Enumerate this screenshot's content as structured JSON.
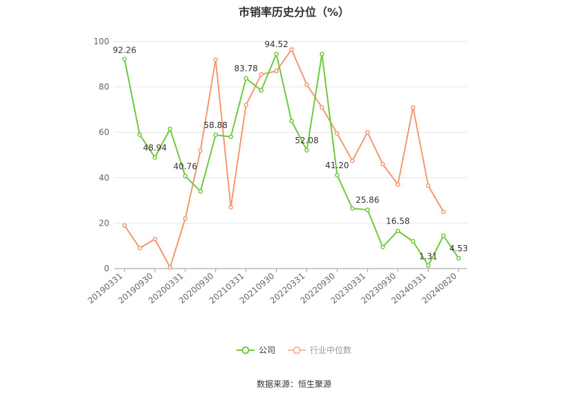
{
  "chart_data": {
    "type": "line",
    "title": "市销率历史分位（%）",
    "ylim": [
      0,
      100
    ],
    "yticks": [
      0,
      20,
      40,
      60,
      80,
      100
    ],
    "x": [
      "20190331",
      "20190630",
      "20190930",
      "20191231",
      "20200331",
      "20200630",
      "20200930",
      "20201231",
      "20210331",
      "20210630",
      "20210930",
      "20211231",
      "20220331",
      "20220630",
      "20220930",
      "20221231",
      "20230331",
      "20230630",
      "20230930",
      "20231231",
      "20240331",
      "20240630",
      "20240820"
    ],
    "xtick_labels": [
      "20190331",
      "20190930",
      "20200331",
      "20200930",
      "20210331",
      "20210930",
      "20220331",
      "20220930",
      "20230331",
      "20230930",
      "20240331",
      "20240820"
    ],
    "series": [
      {
        "name": "公司",
        "color": "#6dc93c",
        "values": [
          92.26,
          59,
          48.94,
          61.5,
          40.76,
          34,
          58.88,
          58,
          83.78,
          78.5,
          94.52,
          65,
          52.08,
          94.5,
          41.2,
          26.5,
          25.86,
          9.5,
          16.58,
          12,
          1.31,
          14.5,
          4.53
        ],
        "labels": {
          "0": "92.26",
          "2": "48.94",
          "4": "40.76",
          "6": "58.88",
          "8": "83.78",
          "10": "94.52",
          "12": "52.08",
          "14": "41.20",
          "16": "25.86",
          "18": "16.58",
          "20": "1.31",
          "22": "4.53"
        }
      },
      {
        "name": "行业中位数",
        "color": "#f4976c",
        "values": [
          19,
          9,
          13,
          0.5,
          22,
          52,
          92,
          27,
          72,
          85.5,
          87,
          96.5,
          81,
          71,
          59.5,
          47.5,
          60,
          46,
          37,
          71,
          36.5,
          25,
          null
        ]
      }
    ],
    "legend_position": "bottom",
    "grid": true
  },
  "source": "数据来源：恒生聚源"
}
